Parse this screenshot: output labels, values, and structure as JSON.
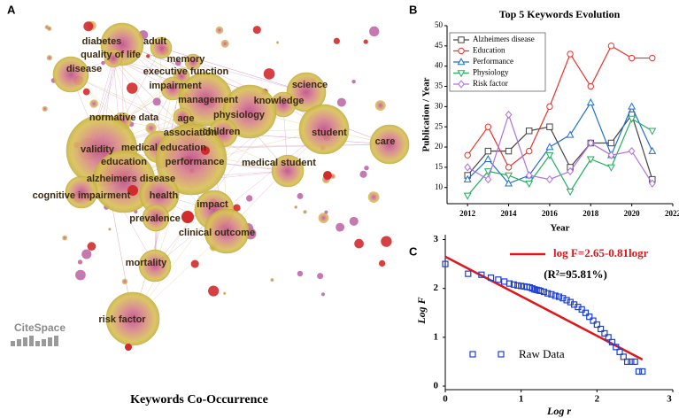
{
  "chart_data": [
    {
      "type": "network",
      "panel_label": "A",
      "title": "Keywords Co-Occurrence",
      "watermark": "CiteSpace",
      "nodes": [
        "diabetes",
        "adult",
        "quality of life",
        "memory",
        "disease",
        "executive function",
        "impairment",
        "science",
        "management",
        "knowledge",
        "physiology",
        "normative data",
        "age",
        "association",
        "children",
        "student",
        "care",
        "medical education",
        "validity",
        "education",
        "performance",
        "medical student",
        "alzheimers disease",
        "cognitive impairment",
        "health",
        "impact",
        "prevalence",
        "clinical outcome",
        "mortality",
        "risk factor"
      ]
    },
    {
      "type": "line",
      "panel_label": "B",
      "title": "Top 5 Keywords Evolution",
      "x_label": "Year",
      "y_label": "Publication / Year",
      "x": [
        2012,
        2013,
        2014,
        2015,
        2016,
        2017,
        2018,
        2019,
        2020,
        2021
      ],
      "xlim": [
        2011,
        2022
      ],
      "xticks": [
        2012,
        2014,
        2016,
        2018,
        2020,
        2022
      ],
      "ylim": [
        6,
        50
      ],
      "yticks": [
        10,
        15,
        20,
        25,
        30,
        35,
        40,
        45,
        50
      ],
      "legend": "upper left",
      "series": [
        {
          "name": "Alzheimers disease",
          "color": "#444444",
          "marker": "square",
          "values": [
            13,
            19,
            19,
            24,
            25,
            15,
            21,
            21,
            28,
            12
          ]
        },
        {
          "name": "Education",
          "color": "#e8332e",
          "marker": "circle",
          "values": [
            18,
            25,
            15,
            19,
            30,
            43,
            35,
            45,
            42,
            42
          ]
        },
        {
          "name": "Performance",
          "color": "#1f6fd1",
          "marker": "triangle-up",
          "values": [
            12,
            17,
            11,
            13,
            20,
            23,
            31,
            18,
            30,
            19
          ]
        },
        {
          "name": "Physiology",
          "color": "#1fae5c",
          "marker": "triangle-down",
          "values": [
            8,
            14,
            13,
            11,
            18,
            9,
            17,
            15,
            27,
            24
          ]
        },
        {
          "name": "Risk factor",
          "color": "#b26fe0",
          "marker": "diamond",
          "values": [
            15,
            12,
            28,
            13,
            12,
            14,
            21,
            18,
            19,
            11
          ]
        }
      ]
    },
    {
      "type": "scatter",
      "panel_label": "C",
      "x_label": "Log r",
      "y_label": "Log F",
      "annotation": "(R²=95.81%)",
      "xlim": [
        0,
        3
      ],
      "xticks": [
        0,
        1,
        2,
        3
      ],
      "ylim": [
        0,
        3.1
      ],
      "yticks": [
        0,
        1,
        2,
        3
      ],
      "series": [
        {
          "name": "log F=2.65-0.81logr",
          "style": "line",
          "color": "#e0161b",
          "x": [
            0,
            2.6
          ],
          "values": [
            2.65,
            0.544
          ]
        },
        {
          "name": "Raw Data",
          "style": "marker",
          "color": "#1d3fd6",
          "x": [
            0,
            0.301,
            0.477,
            0.602,
            0.699,
            0.778,
            0.845,
            0.903,
            0.954,
            1.0,
            1.041,
            1.079,
            1.114,
            1.146,
            1.176,
            1.204,
            1.23,
            1.255,
            1.3,
            1.35,
            1.4,
            1.45,
            1.5,
            1.55,
            1.6,
            1.65,
            1.7,
            1.75,
            1.8,
            1.85,
            1.9,
            1.95,
            2.0,
            2.05,
            2.1,
            2.15,
            2.2,
            2.25,
            2.3,
            2.35,
            2.4,
            2.45,
            2.5,
            2.55,
            2.6
          ],
          "values": [
            2.5,
            2.3,
            2.28,
            2.22,
            2.18,
            2.14,
            2.1,
            2.08,
            2.06,
            2.05,
            2.04,
            2.03,
            2.02,
            2.0,
            1.98,
            1.97,
            1.96,
            1.95,
            1.93,
            1.9,
            1.88,
            1.85,
            1.83,
            1.8,
            1.76,
            1.72,
            1.67,
            1.62,
            1.57,
            1.5,
            1.42,
            1.34,
            1.26,
            1.17,
            1.08,
            1.0,
            0.9,
            0.8,
            0.7,
            0.6,
            0.5,
            0.5,
            0.5,
            0.3,
            0.3
          ]
        }
      ]
    }
  ]
}
